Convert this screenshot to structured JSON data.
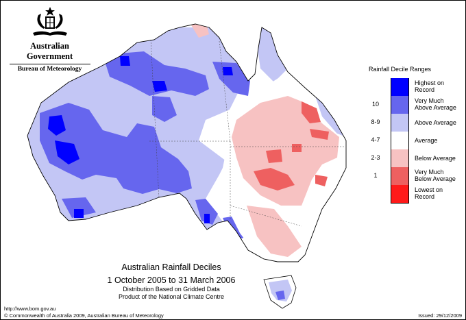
{
  "header": {
    "government": "Australian Government",
    "bureau": "Bureau of Meteorology",
    "crest_icon": "commonwealth-coat-of-arms-icon"
  },
  "legend": {
    "title": "Rainfall Decile Ranges",
    "items": [
      {
        "range": "",
        "label_line1": "Highest on",
        "label_line2": "Record",
        "color": "#0000ff"
      },
      {
        "range": "10",
        "label_line1": "Very Much",
        "label_line2": "Above Average",
        "color": "#6666ee"
      },
      {
        "range": "8-9",
        "label_line1": "Above Average",
        "label_line2": "",
        "color": "#c3c6f5"
      },
      {
        "range": "4-7",
        "label_line1": "Average",
        "label_line2": "",
        "color": "#ffffff"
      },
      {
        "range": "2-3",
        "label_line1": "Below Average",
        "label_line2": "",
        "color": "#f7c2c2"
      },
      {
        "range": "1",
        "label_line1": "Very Much",
        "label_line2": "Below Average",
        "color": "#ee6060"
      },
      {
        "range": "",
        "label_line1": "Lowest on",
        "label_line2": "Record",
        "color": "#ff1a1a"
      }
    ]
  },
  "map": {
    "subject": "Australia",
    "period_start": "1 October 2005",
    "period_end": "31 March 2006"
  },
  "titleblock": {
    "line1": "Australian Rainfall Deciles",
    "line2": "1 October 2005 to 31 March 2006",
    "line3": "Distribution Based on Gridded Data",
    "line4": "Product of the National Climate Centre"
  },
  "footer": {
    "url": "http://www.bom.gov.au",
    "copyright": "© Commonwealth of Australia 2009, Australian Bureau of Meteorology",
    "issued": "Issued: 29/12/2009"
  }
}
